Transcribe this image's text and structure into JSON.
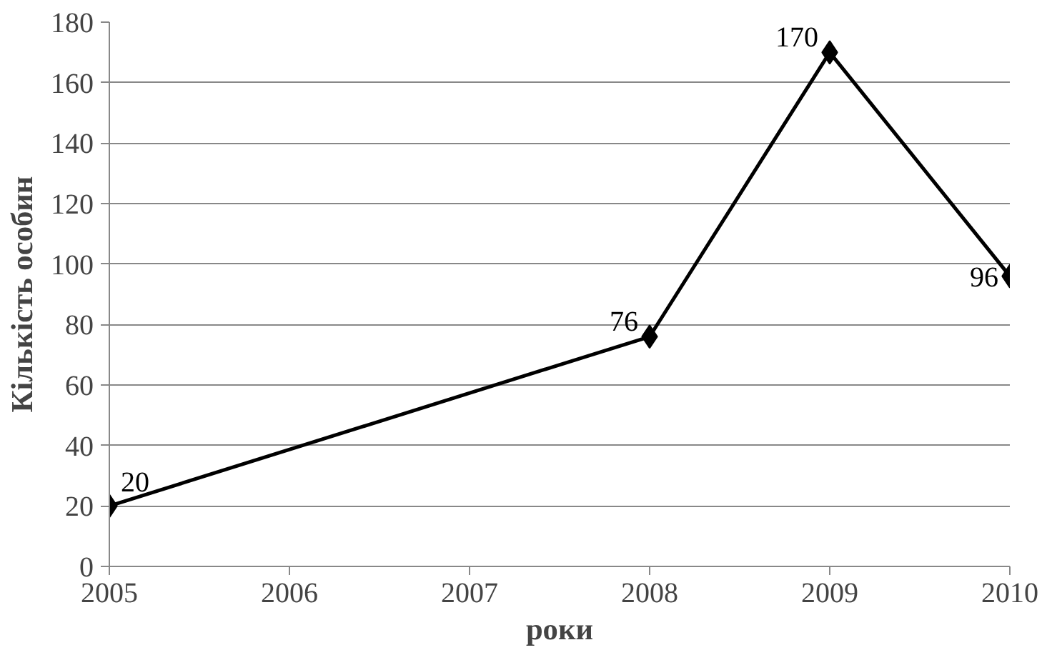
{
  "chart_data": {
    "type": "line",
    "xlabel": "роки",
    "ylabel": "Кількість особин",
    "x": [
      2005,
      2008,
      2009,
      2010
    ],
    "series": [
      {
        "color": "#000000",
        "values": [
          20,
          76,
          170,
          96
        ]
      }
    ],
    "xlim": [
      2005,
      2010
    ],
    "xticks": [
      2005,
      2006,
      2007,
      2008,
      2009,
      2010
    ],
    "ylim": [
      0,
      180
    ],
    "yticks": [
      0,
      20,
      40,
      60,
      80,
      100,
      120,
      140,
      160,
      180
    ],
    "grid": "y",
    "marker": "diamond",
    "line_style": "solid",
    "data_labels": true
  }
}
